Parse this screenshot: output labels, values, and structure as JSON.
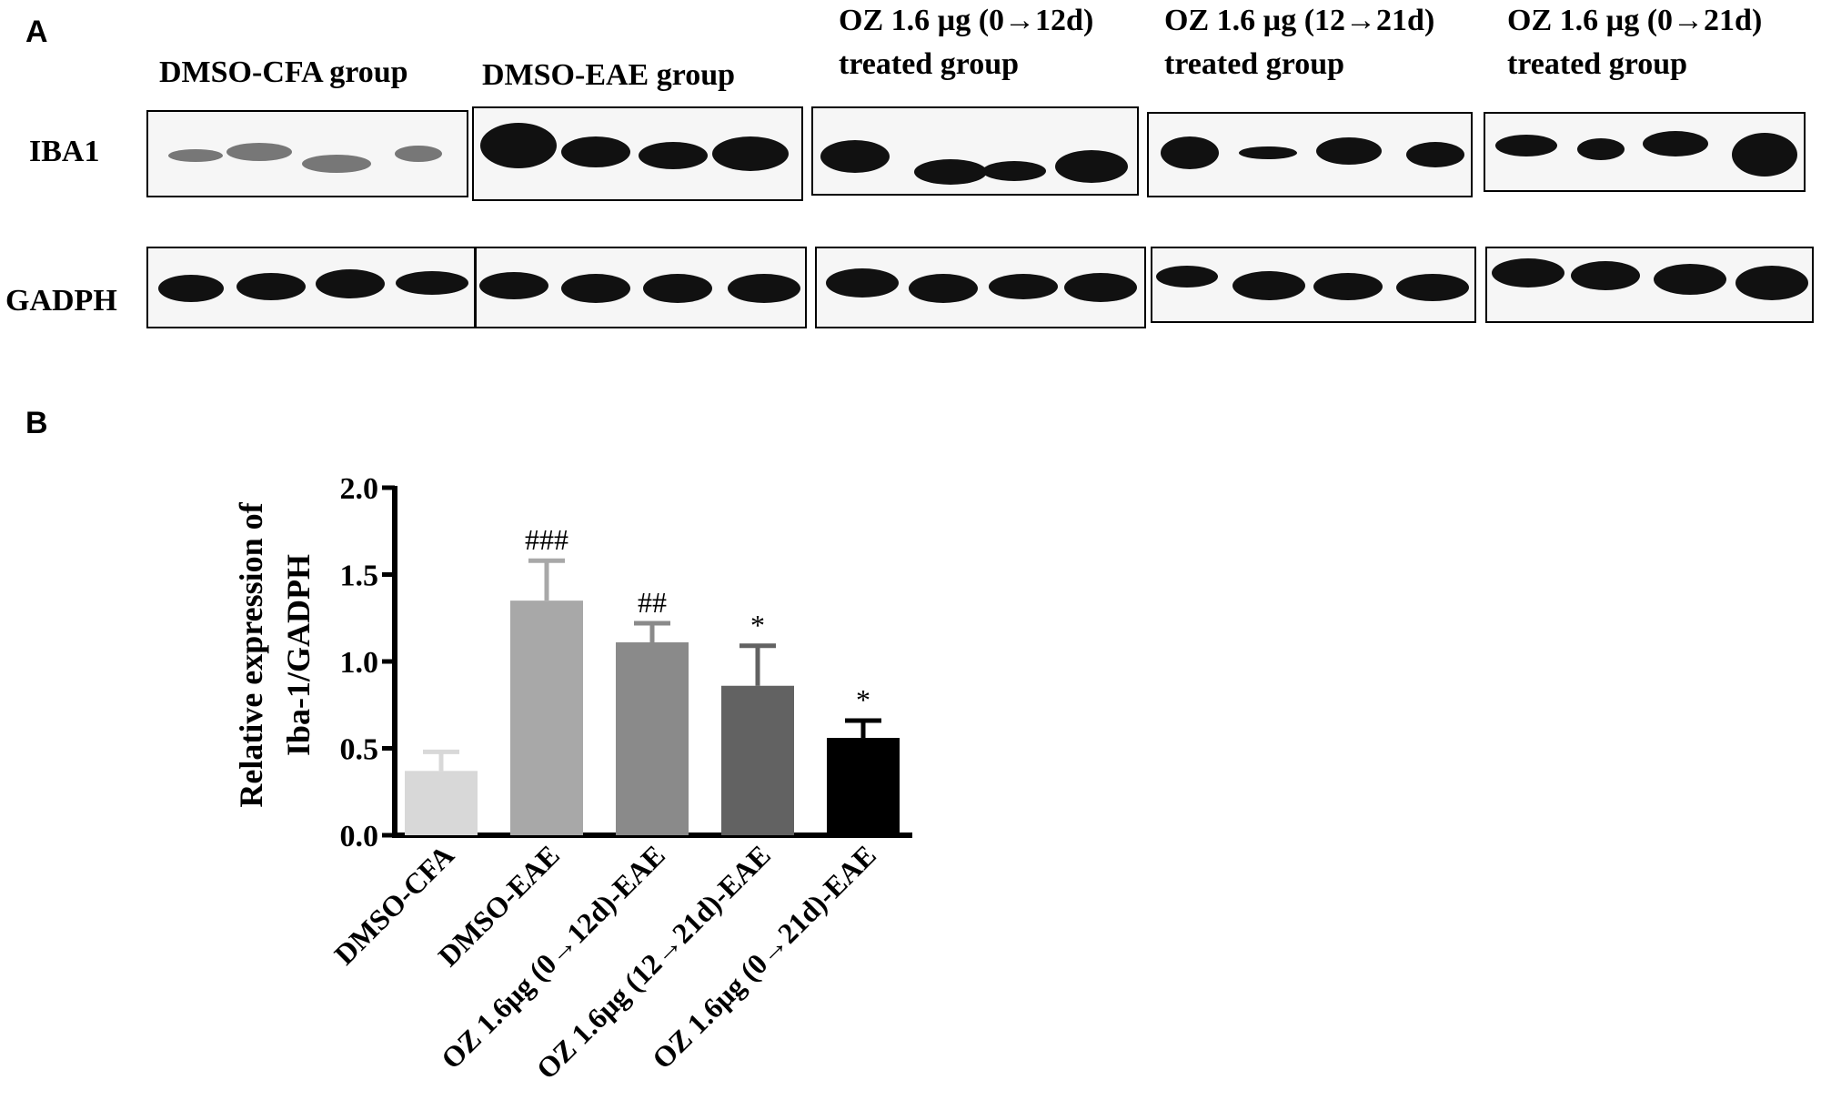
{
  "panel_a": {
    "letter": "A",
    "groups": [
      {
        "line1": "DMSO-CFA group",
        "line2": ""
      },
      {
        "line1": "DMSO-EAE group",
        "line2": ""
      },
      {
        "line1": "OZ 1.6 µg (0→12d)",
        "line2": "treated group"
      },
      {
        "line1": "OZ 1.6 µg (12→21d)",
        "line2": "treated group"
      },
      {
        "line1": "OZ 1.6 µg (0→21d)",
        "line2": "treated group"
      }
    ],
    "row_labels": [
      "IBA1",
      "GADPH"
    ]
  },
  "panel_b": {
    "letter": "B"
  },
  "chart_data": {
    "type": "bar",
    "categories": [
      "DMSO-CFA",
      "DMSO-EAE",
      "OZ 1.6μg (0→12d)-EAE",
      "OZ 1.6μg (12→21d)-EAE",
      "OZ 1.6μg (0→21d)-EAE"
    ],
    "values": [
      0.37,
      1.35,
      1.11,
      0.86,
      0.56
    ],
    "errors": [
      0.11,
      0.23,
      0.11,
      0.23,
      0.1
    ],
    "annotations": [
      "",
      "###",
      "##",
      "*",
      "*"
    ],
    "bar_colors": [
      "#d8d8d8",
      "#a8a8a8",
      "#8a8a8a",
      "#626262",
      "#000000"
    ],
    "ylabel_line1": "Relative expression of",
    "ylabel_line2": "Iba-1/GADPH",
    "xlabel": "",
    "ylim": [
      0,
      2.0
    ],
    "yticks": [
      "0.0",
      "0.5",
      "1.0",
      "1.5",
      "2.0"
    ],
    "grid": false
  }
}
